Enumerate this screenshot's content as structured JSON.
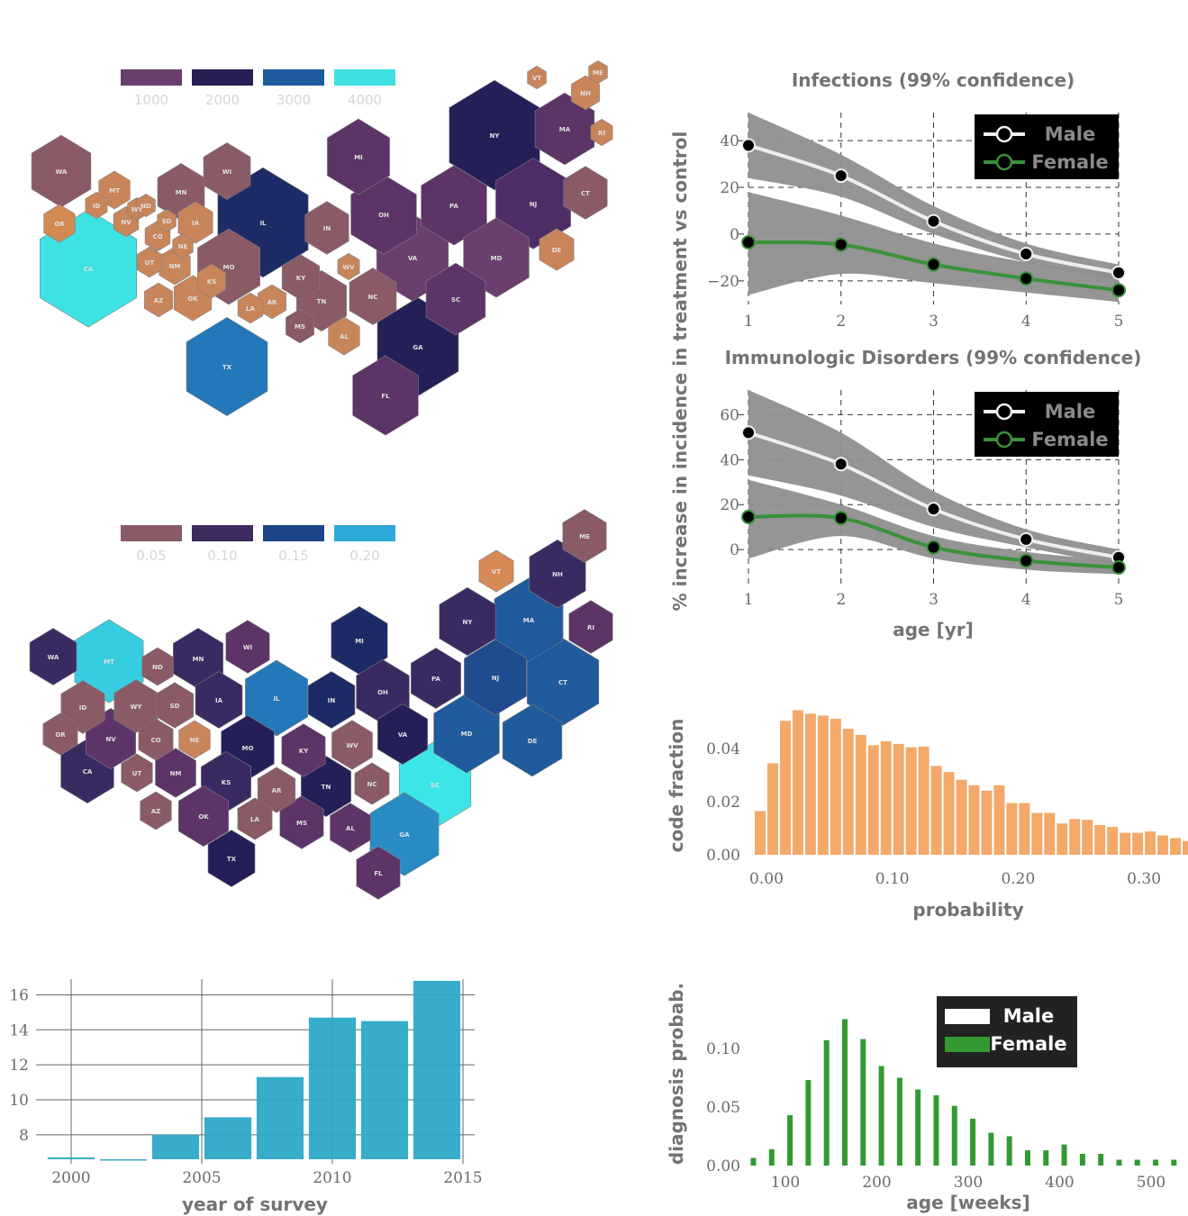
{
  "colors": {
    "hex_edge": "#7f7f7f",
    "band": "#8f8f8f",
    "male_line": "#eeeeee",
    "female_line": "#3a923a",
    "marker": "#000000",
    "bar_survey": "#2ca9c7",
    "bar_prob": "#f2a96a",
    "bar_diag_female": "#339933"
  },
  "maps": [
    {
      "legend": {
        "labels": [
          "1000",
          "2000",
          "3000",
          "4000"
        ],
        "colors": [
          "#6a3f6e",
          "#261f55",
          "#1e5a9e",
          "#3fe0e0"
        ]
      },
      "states": [
        {
          "abbr": "WA",
          "color": "#8a5a67"
        },
        {
          "abbr": "MT",
          "color": "#c9855a"
        },
        {
          "abbr": "ID",
          "color": "#c9855a"
        },
        {
          "abbr": "WY",
          "color": "#c9855a"
        },
        {
          "abbr": "OR",
          "color": "#d08a52"
        },
        {
          "abbr": "NV",
          "color": "#c9855a"
        },
        {
          "abbr": "CA",
          "color": "#3de2e3"
        },
        {
          "abbr": "UT",
          "color": "#c9855a"
        },
        {
          "abbr": "CO",
          "color": "#c9855a"
        },
        {
          "abbr": "SD",
          "color": "#c9855a"
        },
        {
          "abbr": "ND",
          "color": "#c9855a"
        },
        {
          "abbr": "MN",
          "color": "#8a5a67"
        },
        {
          "abbr": "WI",
          "color": "#8a5a67"
        },
        {
          "abbr": "IA",
          "color": "#c9855a"
        },
        {
          "abbr": "NE",
          "color": "#c9855a"
        },
        {
          "abbr": "IL",
          "color": "#1d2c66"
        },
        {
          "abbr": "MI",
          "color": "#5c3468"
        },
        {
          "abbr": "IN",
          "color": "#8a5a67"
        },
        {
          "abbr": "OH",
          "color": "#5c3468"
        },
        {
          "abbr": "NY",
          "color": "#251f58"
        },
        {
          "abbr": "PA",
          "color": "#5c3468"
        },
        {
          "abbr": "NJ",
          "color": "#4d2d66"
        },
        {
          "abbr": "MA",
          "color": "#5c3468"
        },
        {
          "abbr": "CT",
          "color": "#8a5a67"
        },
        {
          "abbr": "NH",
          "color": "#c9855a"
        },
        {
          "abbr": "ME",
          "color": "#c9855a"
        },
        {
          "abbr": "RI",
          "color": "#c9855a"
        },
        {
          "abbr": "VT",
          "color": "#c9855a"
        },
        {
          "abbr": "DE",
          "color": "#c9855a"
        },
        {
          "abbr": "MD",
          "color": "#6a3f6e"
        },
        {
          "abbr": "VA",
          "color": "#6a3f6e"
        },
        {
          "abbr": "WV",
          "color": "#c9855a"
        },
        {
          "abbr": "KY",
          "color": "#8a5a67"
        },
        {
          "abbr": "MO",
          "color": "#8a5a67"
        },
        {
          "abbr": "KS",
          "color": "#c9855a"
        },
        {
          "abbr": "OK",
          "color": "#c9855a"
        },
        {
          "abbr": "NM",
          "color": "#c9855a"
        },
        {
          "abbr": "AZ",
          "color": "#c9855a"
        },
        {
          "abbr": "TX",
          "color": "#2278b8"
        },
        {
          "abbr": "AR",
          "color": "#c9855a"
        },
        {
          "abbr": "LA",
          "color": "#c9855a"
        },
        {
          "abbr": "MS",
          "color": "#8a5a67"
        },
        {
          "abbr": "TN",
          "color": "#8a5a67"
        },
        {
          "abbr": "AL",
          "color": "#c9855a"
        },
        {
          "abbr": "NC",
          "color": "#8a5a67"
        },
        {
          "abbr": "SC",
          "color": "#5c3468"
        },
        {
          "abbr": "GA",
          "color": "#251f58"
        },
        {
          "abbr": "FL",
          "color": "#5c3468"
        }
      ]
    },
    {
      "legend": {
        "labels": [
          "0.05",
          "0.10",
          "0.15",
          "0.20"
        ],
        "colors": [
          "#8a5a67",
          "#3d2a5e",
          "#1c4488",
          "#2ea8d6"
        ]
      },
      "states": [
        {
          "abbr": "ME",
          "color": "#8a5a67"
        },
        {
          "abbr": "VT",
          "color": "#d68a56"
        },
        {
          "abbr": "NH",
          "color": "#3a2a62"
        },
        {
          "abbr": "NY",
          "color": "#3a2a62"
        },
        {
          "abbr": "MA",
          "color": "#1f5b9d"
        },
        {
          "abbr": "RI",
          "color": "#5c3468"
        },
        {
          "abbr": "CT",
          "color": "#1f5b9d"
        },
        {
          "abbr": "NJ",
          "color": "#1f4c8e"
        },
        {
          "abbr": "PA",
          "color": "#3a2a62"
        },
        {
          "abbr": "MI",
          "color": "#1d2a66"
        },
        {
          "abbr": "WI",
          "color": "#5c3468"
        },
        {
          "abbr": "MN",
          "color": "#3a2a62"
        },
        {
          "abbr": "ND",
          "color": "#8a5a67"
        },
        {
          "abbr": "MT",
          "color": "#36cde0"
        },
        {
          "abbr": "WA",
          "color": "#3a2a62"
        },
        {
          "abbr": "ID",
          "color": "#8a5a67"
        },
        {
          "abbr": "WY",
          "color": "#8a5a67"
        },
        {
          "abbr": "SD",
          "color": "#8a5a67"
        },
        {
          "abbr": "IA",
          "color": "#3a2a62"
        },
        {
          "abbr": "IL",
          "color": "#2278b8"
        },
        {
          "abbr": "IN",
          "color": "#1d2a66"
        },
        {
          "abbr": "OH",
          "color": "#3a2a62"
        },
        {
          "abbr": "MD",
          "color": "#1f5b9d"
        },
        {
          "abbr": "DE",
          "color": "#1f5b9d"
        },
        {
          "abbr": "VA",
          "color": "#251f58"
        },
        {
          "abbr": "WV",
          "color": "#8a5a67"
        },
        {
          "abbr": "KY",
          "color": "#5c3468"
        },
        {
          "abbr": "MO",
          "color": "#251f58"
        },
        {
          "abbr": "NE",
          "color": "#c9855a"
        },
        {
          "abbr": "CO",
          "color": "#8a5a67"
        },
        {
          "abbr": "NV",
          "color": "#5c3468"
        },
        {
          "abbr": "OR",
          "color": "#8a5a67"
        },
        {
          "abbr": "CA",
          "color": "#3a2a62"
        },
        {
          "abbr": "UT",
          "color": "#8a5a67"
        },
        {
          "abbr": "NM",
          "color": "#5c3468"
        },
        {
          "abbr": "KS",
          "color": "#3a2a62"
        },
        {
          "abbr": "AR",
          "color": "#8a5a67"
        },
        {
          "abbr": "TN",
          "color": "#251f58"
        },
        {
          "abbr": "NC",
          "color": "#8a5a67"
        },
        {
          "abbr": "SC",
          "color": "#3de6e6"
        },
        {
          "abbr": "GA",
          "color": "#2a8cc4"
        },
        {
          "abbr": "AZ",
          "color": "#8a5a67"
        },
        {
          "abbr": "OK",
          "color": "#5c3468"
        },
        {
          "abbr": "LA",
          "color": "#8a5a67"
        },
        {
          "abbr": "MS",
          "color": "#5c3468"
        },
        {
          "abbr": "AL",
          "color": "#5c3468"
        },
        {
          "abbr": "TX",
          "color": "#251f58"
        },
        {
          "abbr": "FL",
          "color": "#5c3468"
        }
      ]
    }
  ],
  "chart_data": [
    {
      "type": "line",
      "title": "Infections (99% confidence)",
      "xlabel": "",
      "ylabel": "% increase in incidence in treatment vs control",
      "x": [
        1,
        2,
        3,
        4,
        5
      ],
      "xticks": [
        "1",
        "2",
        "3",
        "4",
        "5"
      ],
      "yticks": [
        "40",
        "20",
        "0",
        "−20"
      ],
      "ytick_values": [
        40,
        20,
        0,
        -20
      ],
      "ylim": [
        -27,
        52
      ],
      "grid": true,
      "legend": {
        "position": "top-right",
        "entries": [
          "Male",
          "Female"
        ]
      },
      "series": [
        {
          "name": "Male",
          "values": [
            38,
            25,
            5.5,
            -8.5,
            -16.5
          ],
          "band_upper": [
            52,
            34,
            12,
            -4,
            -13
          ],
          "band_lower": [
            24,
            16,
            0,
            -12,
            -20
          ]
        },
        {
          "name": "Female",
          "values": [
            -3.5,
            -4.5,
            -13,
            -19,
            -24
          ],
          "band_upper": [
            18,
            8,
            -4,
            -12,
            -17
          ],
          "band_lower": [
            -26,
            -17,
            -21,
            -25,
            -29
          ]
        }
      ]
    },
    {
      "type": "line",
      "title": "Immunologic Disorders (99% confidence)",
      "xlabel": "age [yr]",
      "x": [
        1,
        2,
        3,
        4,
        5
      ],
      "xticks": [
        "1",
        "2",
        "3",
        "4",
        "5"
      ],
      "yticks": [
        "60",
        "40",
        "20",
        "0"
      ],
      "ytick_values": [
        60,
        40,
        20,
        0
      ],
      "ylim": [
        -12,
        71
      ],
      "grid": true,
      "legend": {
        "position": "top-right",
        "entries": [
          "Male",
          "Female"
        ]
      },
      "series": [
        {
          "name": "Male",
          "values": [
            52,
            38,
            18,
            4.5,
            -3.5
          ],
          "band_upper": [
            71,
            52,
            26,
            9,
            0
          ],
          "band_lower": [
            33,
            24,
            10,
            1,
            -7
          ]
        },
        {
          "name": "Female",
          "values": [
            14.5,
            14,
            1,
            -5,
            -8
          ],
          "band_upper": [
            31,
            20,
            6,
            -1,
            -5
          ],
          "band_lower": [
            -4,
            6,
            -4,
            -9,
            -11
          ]
        }
      ]
    },
    {
      "type": "bar",
      "title": "",
      "xlabel": "probability",
      "ylabel": "code fraction",
      "xticks": [
        "0.00",
        "0.10",
        "0.20",
        "0.30"
      ],
      "xtick_values": [
        0.0,
        0.1,
        0.2,
        0.3
      ],
      "yticks": [
        "0.04",
        "0.02",
        "0.00"
      ],
      "ytick_values": [
        0.04,
        0.02,
        0.0
      ],
      "xlim": [
        -0.01,
        0.335
      ],
      "ylim": [
        0,
        0.055
      ],
      "bin_width": 0.01,
      "bin_starts": [
        -0.01,
        0.0,
        0.01,
        0.02,
        0.03,
        0.04,
        0.05,
        0.06,
        0.07,
        0.08,
        0.09,
        0.1,
        0.11,
        0.12,
        0.13,
        0.14,
        0.15,
        0.16,
        0.17,
        0.18,
        0.19,
        0.2,
        0.21,
        0.22,
        0.23,
        0.24,
        0.25,
        0.26,
        0.27,
        0.28,
        0.29,
        0.3,
        0.31,
        0.32,
        0.33
      ],
      "values": [
        0.0165,
        0.0345,
        0.0505,
        0.0545,
        0.0532,
        0.0525,
        0.0513,
        0.0475,
        0.0452,
        0.0413,
        0.0428,
        0.0418,
        0.0405,
        0.0408,
        0.0335,
        0.0312,
        0.0283,
        0.0262,
        0.0242,
        0.0262,
        0.0195,
        0.0195,
        0.0158,
        0.0158,
        0.0118,
        0.0135,
        0.0132,
        0.0112,
        0.0105,
        0.0083,
        0.0083,
        0.0088,
        0.0073,
        0.0063,
        0.0052
      ]
    },
    {
      "type": "bar",
      "title": "",
      "xlabel": "year of survey",
      "ylabel": "",
      "xticks": [
        "2000",
        "2005",
        "2010",
        "2015"
      ],
      "xtick_values": [
        2000,
        2005,
        2010,
        2015
      ],
      "yticks": [
        "16",
        "14",
        "12",
        "10",
        "8"
      ],
      "ytick_values": [
        16,
        14,
        12,
        10,
        8
      ],
      "ylim": [
        6.6,
        16.9
      ],
      "bar_width": 1.8,
      "x": [
        2000,
        2002,
        2004,
        2006,
        2008,
        2010,
        2012,
        2014
      ],
      "values": [
        6.7,
        6.6,
        8.0,
        9.0,
        11.3,
        14.7,
        14.5,
        16.8
      ]
    },
    {
      "type": "bar",
      "title": "",
      "xlabel": "age [weeks]",
      "ylabel": "diagnosis probab.",
      "xticks": [
        "100",
        "200",
        "300",
        "400",
        "500"
      ],
      "xtick_values": [
        100,
        200,
        300,
        400,
        500
      ],
      "yticks": [
        "0.10",
        "0.05",
        "0.00"
      ],
      "ytick_values": [
        0.1,
        0.05,
        0.0
      ],
      "xlim": [
        50,
        550
      ],
      "ylim": [
        0,
        0.13
      ],
      "legend": {
        "position": "top-right",
        "entries": [
          "Male",
          "Female"
        ]
      },
      "x": [
        65,
        85,
        105,
        125,
        145,
        165,
        185,
        205,
        225,
        245,
        265,
        285,
        305,
        325,
        345,
        365,
        385,
        405,
        425,
        445,
        465,
        485,
        505,
        525
      ],
      "series": [
        {
          "name": "Male",
          "values": [
            0,
            0,
            0,
            0,
            0,
            0,
            0,
            0,
            0,
            0,
            0,
            0,
            0,
            0,
            0,
            0,
            0,
            0,
            0,
            0,
            0,
            0,
            0,
            0
          ]
        },
        {
          "name": "Female",
          "values": [
            0.0065,
            0.014,
            0.043,
            0.073,
            0.107,
            0.125,
            0.108,
            0.085,
            0.075,
            0.065,
            0.06,
            0.051,
            0.04,
            0.028,
            0.025,
            0.013,
            0.013,
            0.018,
            0.01,
            0.01,
            0.005,
            0.005,
            0.005,
            0.005
          ]
        }
      ]
    }
  ]
}
